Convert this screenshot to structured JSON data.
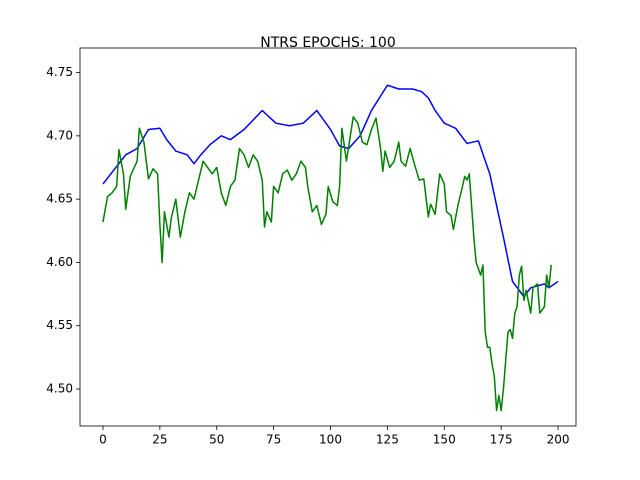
{
  "chart_data": {
    "type": "line",
    "title": "NTRS EPOCHS: 100",
    "xlim": [
      -10.1,
      207.9
    ],
    "ylim": [
      4.4708,
      4.7615
    ],
    "xticks": [
      0,
      25,
      50,
      75,
      100,
      125,
      150,
      175,
      200
    ],
    "yticks": [
      {
        "value": 4.5,
        "label": "4.50"
      },
      4.55,
      {
        "value": 4.6,
        "label": "4.60"
      },
      4.65,
      {
        "value": 4.7,
        "label": "4.70"
      },
      4.75
    ],
    "grid": false,
    "series": [
      {
        "color": "#0000ff",
        "x": [
          0,
          10,
          15,
          20,
          25,
          28,
          32,
          37,
          40,
          43,
          47,
          52,
          56,
          62,
          70,
          76,
          82,
          88,
          94,
          100,
          104,
          108,
          113,
          118,
          125,
          130,
          136,
          140,
          143,
          146,
          150,
          155,
          160,
          165,
          170,
          176,
          180,
          185,
          188,
          194,
          196,
          200
        ],
        "values": [
          4.662,
          4.685,
          4.69,
          4.705,
          4.706,
          4.697,
          4.688,
          4.685,
          4.678,
          4.685,
          4.693,
          4.7,
          4.697,
          4.705,
          4.72,
          4.71,
          4.708,
          4.71,
          4.72,
          4.705,
          4.692,
          4.69,
          4.7,
          4.72,
          4.74,
          4.737,
          4.737,
          4.735,
          4.73,
          4.72,
          4.71,
          4.706,
          4.694,
          4.696,
          4.67,
          4.62,
          4.585,
          4.573,
          4.58,
          4.583,
          4.58,
          4.585
        ]
      },
      {
        "color": "#008000",
        "x": [
          0,
          2,
          4,
          6,
          7,
          9,
          10,
          12,
          15,
          16,
          18,
          20,
          22,
          24,
          25,
          26,
          27,
          29,
          30,
          32,
          34,
          36,
          38,
          40,
          42,
          44,
          46,
          48,
          50,
          52,
          54,
          56,
          58,
          60,
          62,
          64,
          66,
          68,
          70,
          71,
          72,
          74,
          75,
          77,
          79,
          81,
          83,
          85,
          87,
          89,
          90,
          92,
          94,
          96,
          98,
          99,
          101,
          103,
          104,
          105,
          107,
          110,
          112,
          114,
          116,
          118,
          120,
          122,
          123,
          124,
          126,
          128,
          130,
          131,
          133,
          135,
          137,
          139,
          141,
          143,
          144,
          146,
          148,
          150,
          151,
          153,
          154,
          156,
          158,
          159,
          160,
          161,
          163,
          164,
          166,
          167,
          168,
          169,
          170,
          171,
          172,
          173,
          174,
          175,
          176,
          178,
          179,
          180,
          181,
          182,
          183,
          184,
          185,
          186,
          188,
          189,
          191,
          192,
          194,
          195,
          196,
          197
        ],
        "values": [
          4.632,
          4.652,
          4.655,
          4.66,
          4.689,
          4.67,
          4.642,
          4.668,
          4.68,
          4.706,
          4.695,
          4.666,
          4.674,
          4.67,
          4.63,
          4.6,
          4.64,
          4.62,
          4.635,
          4.65,
          4.62,
          4.64,
          4.655,
          4.65,
          4.665,
          4.68,
          4.675,
          4.67,
          4.675,
          4.655,
          4.645,
          4.66,
          4.665,
          4.69,
          4.685,
          4.675,
          4.685,
          4.68,
          4.665,
          4.628,
          4.64,
          4.632,
          4.66,
          4.655,
          4.67,
          4.673,
          4.665,
          4.67,
          4.68,
          4.675,
          4.66,
          4.64,
          4.645,
          4.63,
          4.638,
          4.66,
          4.648,
          4.645,
          4.66,
          4.706,
          4.68,
          4.715,
          4.71,
          4.695,
          4.693,
          4.705,
          4.714,
          4.69,
          4.672,
          4.688,
          4.675,
          4.68,
          4.695,
          4.68,
          4.676,
          4.69,
          4.677,
          4.665,
          4.666,
          4.636,
          4.646,
          4.638,
          4.67,
          4.662,
          4.64,
          4.637,
          4.626,
          4.645,
          4.66,
          4.668,
          4.665,
          4.67,
          4.62,
          4.6,
          4.59,
          4.598,
          4.545,
          4.533,
          4.533,
          4.52,
          4.51,
          4.483,
          4.495,
          4.483,
          4.5,
          4.545,
          4.547,
          4.54,
          4.56,
          4.565,
          4.59,
          4.597,
          4.57,
          4.578,
          4.56,
          4.58,
          4.583,
          4.56,
          4.565,
          4.59,
          4.58,
          4.598
        ]
      }
    ]
  }
}
